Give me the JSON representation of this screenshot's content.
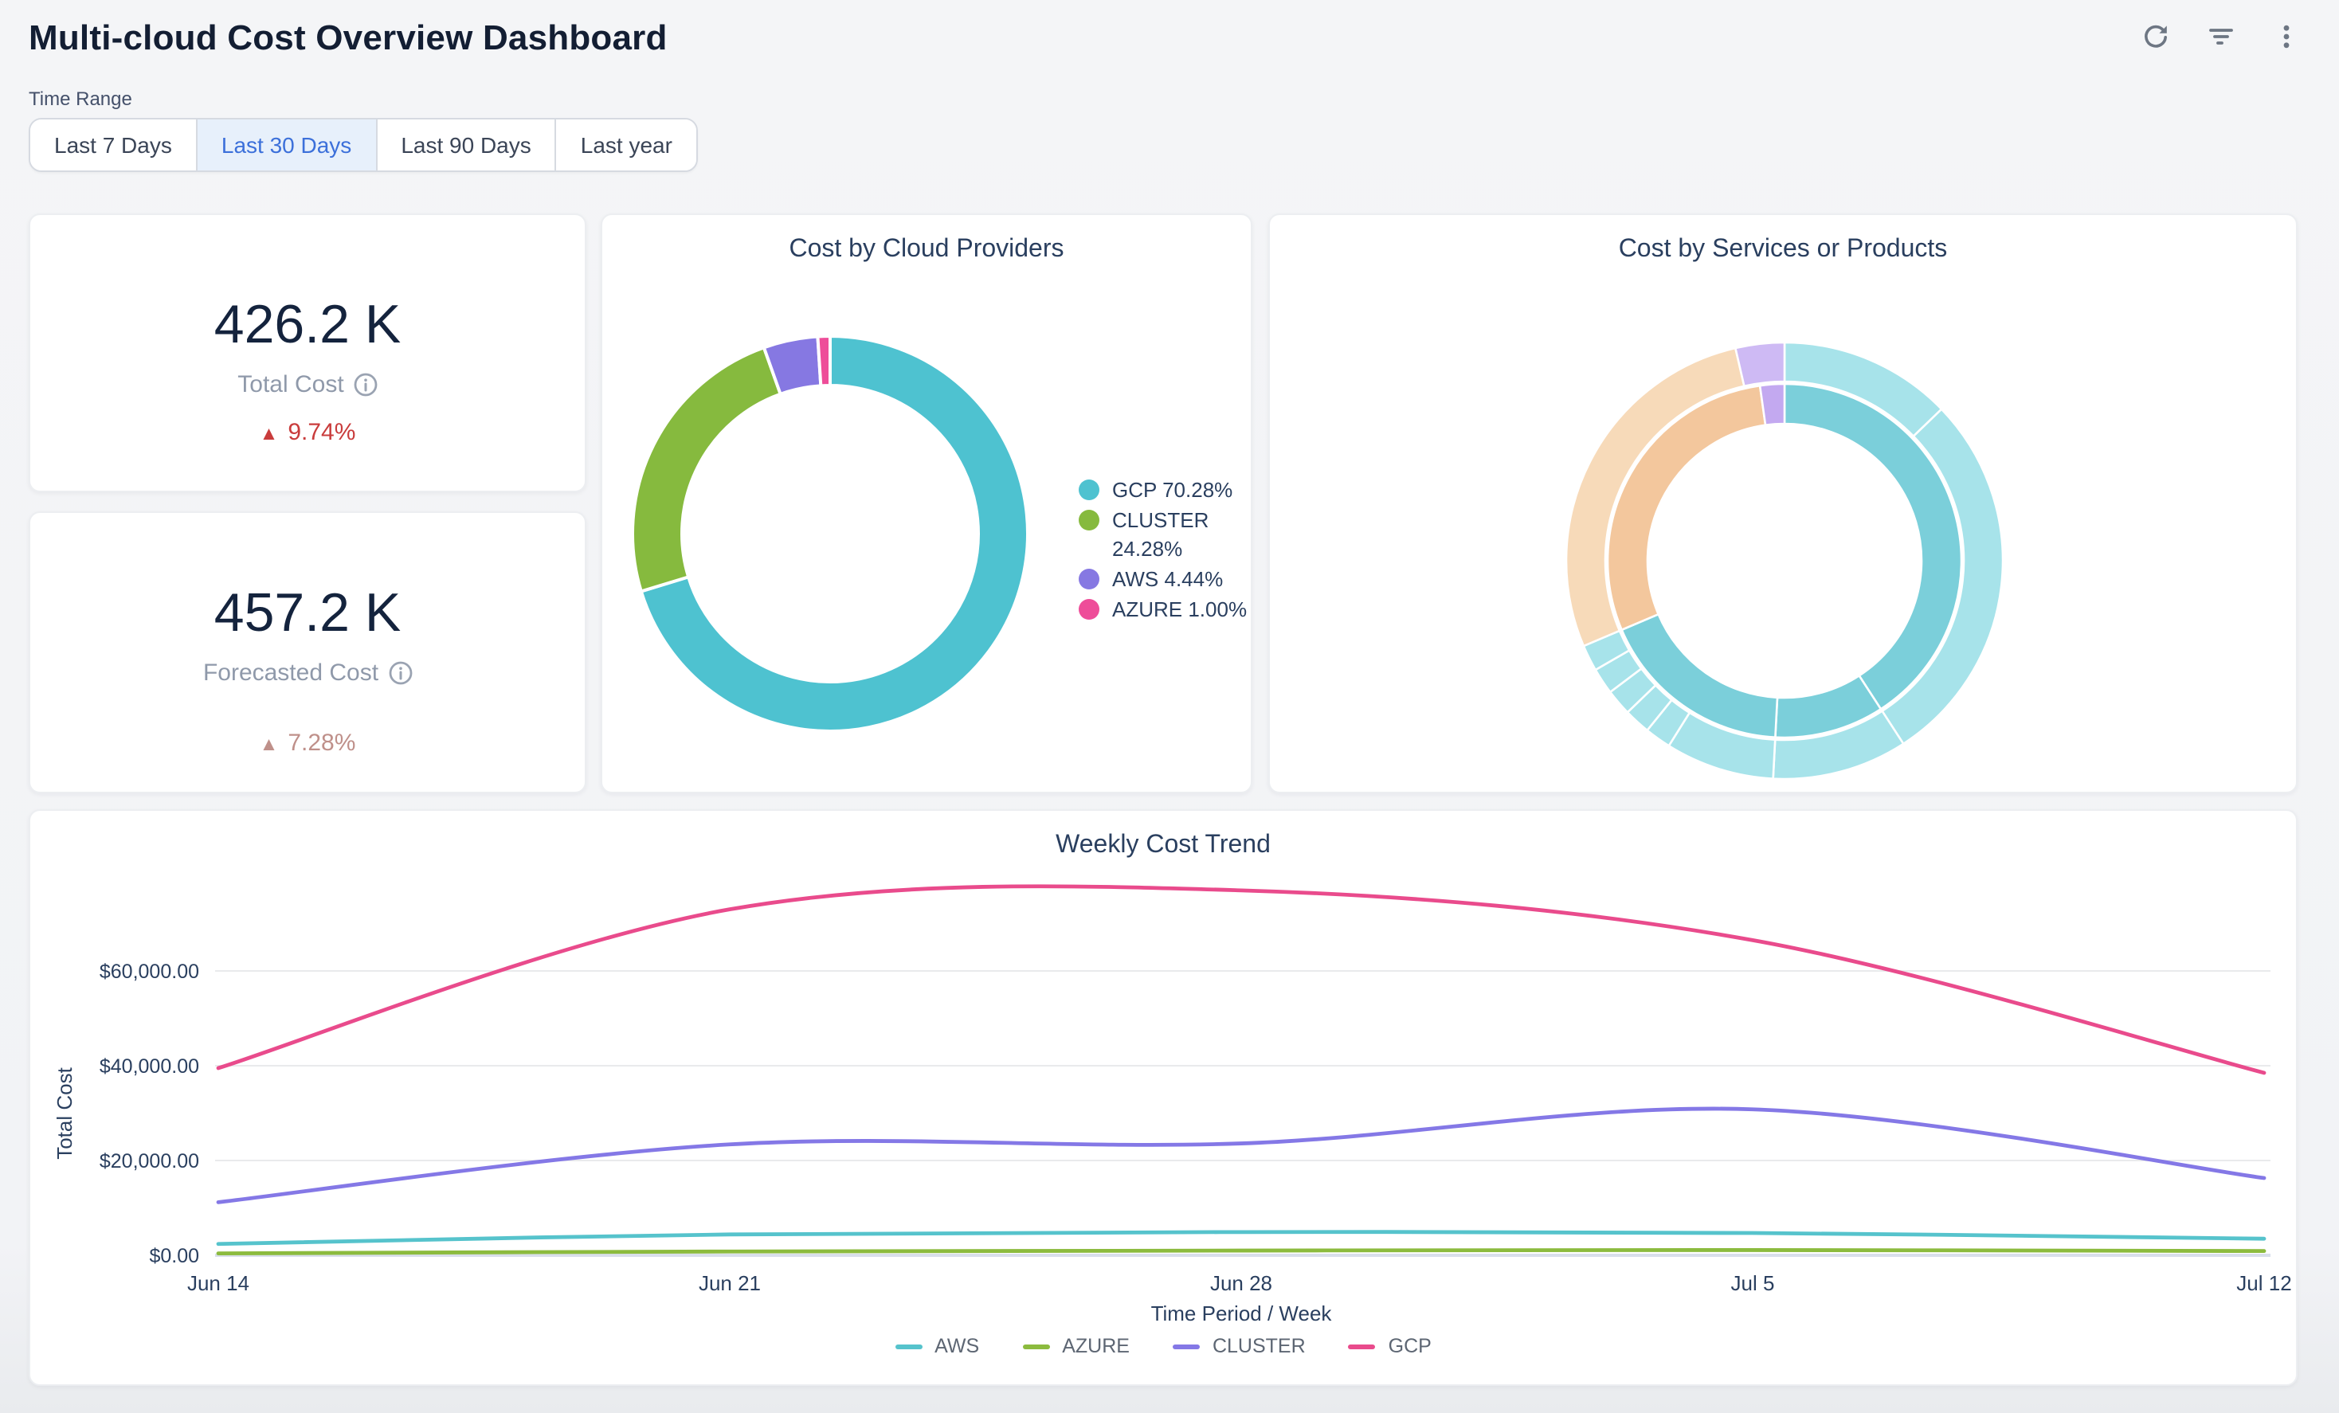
{
  "header": {
    "title": "Multi-cloud Cost Overview Dashboard",
    "icons": [
      "refresh-icon",
      "filter-icon",
      "kebab-menu-icon"
    ]
  },
  "time_range": {
    "label": "Time Range",
    "options": [
      "Last 7 Days",
      "Last 30 Days",
      "Last 90 Days",
      "Last year"
    ],
    "selected": "Last 30 Days"
  },
  "kpis": [
    {
      "value": "426.2 K",
      "label": "Total Cost",
      "delta": "9.74%",
      "direction": "up",
      "delta_color": "#c93c3c",
      "has_info_icon": true
    },
    {
      "value": "457.2 K",
      "label": "Forecasted Cost",
      "delta": "7.28%",
      "direction": "up",
      "delta_color": "#bf908a",
      "has_info_icon": true
    }
  ],
  "chart_data": [
    {
      "type": "pie",
      "title": "Cost by Cloud Providers",
      "hole": 0.75,
      "categories": [
        "GCP",
        "CLUSTER",
        "AWS",
        "AZURE"
      ],
      "values": [
        70.28,
        24.28,
        4.44,
        1.0
      ],
      "unit": "percent",
      "colors": [
        "#4ec2d0",
        "#86ba3e",
        "#8678e2",
        "#ee4d99"
      ],
      "legend_labels": [
        "GCP 70.28%",
        "CLUSTER 24.28%",
        "AWS 4.44%",
        "AZURE 1.00%"
      ],
      "legend_position": "right",
      "start_angle": "top",
      "direction": "clockwise"
    },
    {
      "type": "pie",
      "subtype": "sunburst",
      "title": "Cost by Services or Products",
      "description": "Two-level sunburst; no text labels visible. Angles in degrees clockwise from 12 o'clock.",
      "rings": {
        "inner": [
          {
            "start": 0,
            "end": 147,
            "color": "#7bcfda"
          },
          {
            "start": 147,
            "end": 183,
            "color": "#7bcfda"
          },
          {
            "start": 183,
            "end": 247,
            "color": "#7bcfda"
          },
          {
            "start": 247,
            "end": 352,
            "color": "#f3c79d"
          },
          {
            "start": 352,
            "end": 360,
            "color": "#c3a9f0"
          }
        ],
        "outer": [
          {
            "start": 0,
            "end": 46,
            "color": "#a7e3ea"
          },
          {
            "start": 46,
            "end": 147,
            "color": "#a7e3ea"
          },
          {
            "start": 147,
            "end": 183,
            "color": "#a7e3ea"
          },
          {
            "start": 183,
            "end": 212,
            "color": "#a7e3ea"
          },
          {
            "start": 212,
            "end": 219,
            "color": "#a7e3ea"
          },
          {
            "start": 219,
            "end": 226,
            "color": "#a7e3ea"
          },
          {
            "start": 226,
            "end": 233,
            "color": "#a7e3ea"
          },
          {
            "start": 233,
            "end": 240,
            "color": "#a7e3ea"
          },
          {
            "start": 240,
            "end": 247,
            "color": "#a7e3ea"
          },
          {
            "start": 247,
            "end": 347,
            "color": "#f7dab9"
          },
          {
            "start": 347,
            "end": 360,
            "color": "#cebaf4"
          }
        ]
      }
    },
    {
      "type": "line",
      "title": "Weekly Cost Trend",
      "x": [
        "Jun 14",
        "Jun 21",
        "Jun 28",
        "Jul 5",
        "Jul 12"
      ],
      "series": [
        {
          "name": "AWS",
          "color": "#56c3cc",
          "values": [
            2400,
            4400,
            4900,
            4700,
            3500
          ]
        },
        {
          "name": "AZURE",
          "color": "#8cbb3e",
          "values": [
            400,
            800,
            1000,
            1100,
            900
          ]
        },
        {
          "name": "CLUSTER",
          "color": "#8478e6",
          "values": [
            11200,
            23400,
            23600,
            30800,
            16300
          ]
        },
        {
          "name": "GCP",
          "color": "#e94b8c",
          "values": [
            39500,
            73000,
            77000,
            66500,
            38500
          ]
        }
      ],
      "xlabel": "Time Period / Week",
      "ylabel": "Total Cost",
      "ylim": [
        0,
        80000
      ],
      "yticks": [
        {
          "value": 0,
          "label": "$0.00"
        },
        {
          "value": 20000,
          "label": "$20,000.00"
        },
        {
          "value": 40000,
          "label": "$40,000.00"
        },
        {
          "value": 60000,
          "label": "$60,000.00"
        }
      ],
      "grid": true,
      "line_shape": "spline",
      "legend_position": "bottom"
    }
  ]
}
